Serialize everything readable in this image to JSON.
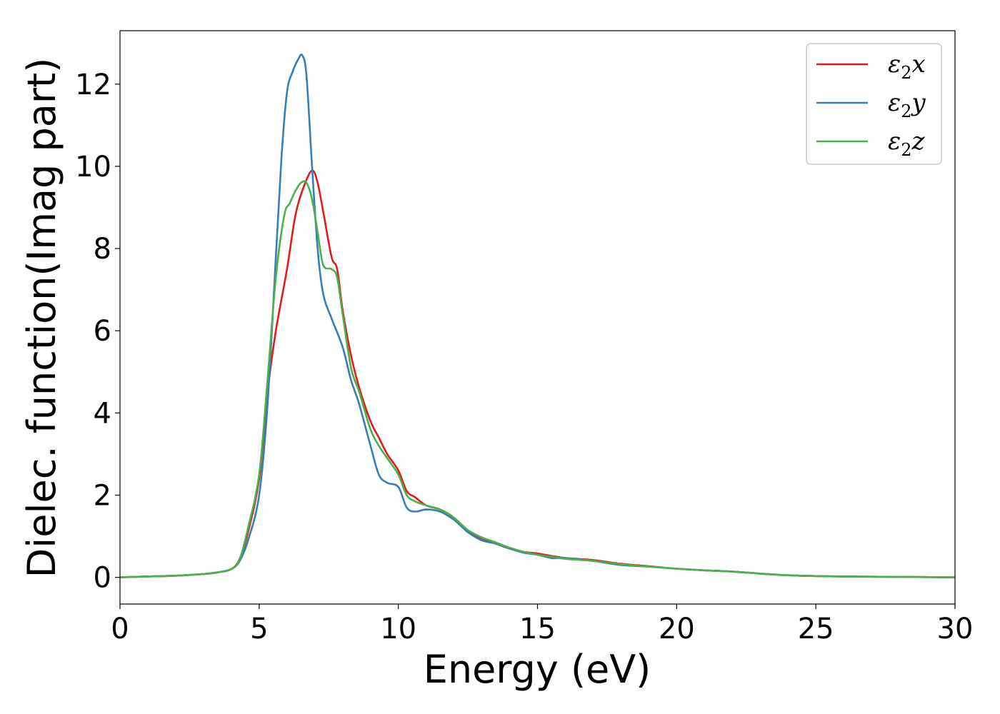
{
  "chart_data": {
    "type": "line",
    "xlabel": "Energy (eV)",
    "ylabel": "Dielec. function(Imag part)",
    "xlim": [
      0,
      30
    ],
    "ylim": [
      -0.65,
      13.3
    ],
    "xticks": [
      0,
      5,
      10,
      15,
      20,
      25,
      30
    ],
    "yticks": [
      0,
      2,
      4,
      6,
      8,
      10,
      12
    ],
    "grid": false,
    "legend_position": "top-right",
    "series": [
      {
        "name": "ε2x",
        "color": "#e41a1c",
        "x": [
          0,
          1,
          2,
          3,
          3.5,
          4,
          4.3,
          4.6,
          5,
          5.3,
          5.6,
          6,
          6.3,
          6.6,
          6.9,
          7.1,
          7.3,
          7.6,
          7.8,
          8,
          8.3,
          8.6,
          9,
          9.3,
          9.6,
          10,
          10.3,
          10.6,
          11,
          11.5,
          12,
          12.5,
          13,
          13.5,
          14,
          14.5,
          15,
          15.5,
          16,
          17,
          18,
          19,
          20,
          21,
          22,
          23,
          24,
          25,
          26,
          28,
          30
        ],
        "y": [
          0.0,
          0.02,
          0.04,
          0.08,
          0.12,
          0.2,
          0.45,
          1.1,
          2.4,
          4.5,
          6.0,
          7.5,
          8.8,
          9.5,
          9.9,
          9.6,
          8.9,
          7.8,
          7.5,
          6.5,
          5.4,
          4.6,
          3.8,
          3.4,
          3.0,
          2.6,
          2.1,
          1.95,
          1.75,
          1.65,
          1.45,
          1.1,
          0.95,
          0.82,
          0.7,
          0.62,
          0.58,
          0.52,
          0.47,
          0.42,
          0.33,
          0.27,
          0.21,
          0.17,
          0.14,
          0.09,
          0.05,
          0.03,
          0.02,
          0.01,
          0.0
        ]
      },
      {
        "name": "ε2y",
        "color": "#377eb8",
        "x": [
          0,
          1,
          2,
          3,
          3.5,
          4,
          4.3,
          4.6,
          5,
          5.3,
          5.6,
          5.8,
          6,
          6.2,
          6.4,
          6.55,
          6.7,
          6.9,
          7.1,
          7.3,
          7.6,
          8,
          8.3,
          8.6,
          9,
          9.3,
          9.6,
          10,
          10.3,
          10.6,
          11,
          11.5,
          12,
          12.5,
          13,
          13.5,
          14,
          14.5,
          15,
          15.5,
          16,
          17,
          18,
          19,
          20,
          21,
          22,
          23,
          24,
          25,
          26,
          28,
          30
        ],
        "y": [
          0.0,
          0.02,
          0.04,
          0.08,
          0.12,
          0.2,
          0.4,
          0.9,
          2.0,
          4.2,
          7.8,
          10.2,
          11.8,
          12.3,
          12.6,
          12.7,
          12.2,
          10.0,
          8.0,
          6.9,
          6.3,
          5.6,
          4.8,
          4.2,
          3.2,
          2.5,
          2.3,
          2.2,
          1.7,
          1.6,
          1.65,
          1.6,
          1.4,
          1.1,
          0.9,
          0.82,
          0.7,
          0.6,
          0.55,
          0.47,
          0.47,
          0.4,
          0.3,
          0.26,
          0.21,
          0.17,
          0.14,
          0.09,
          0.05,
          0.03,
          0.02,
          0.01,
          0.0
        ]
      },
      {
        "name": "ε2z",
        "color": "#4daf4a",
        "x": [
          0,
          1,
          2,
          3,
          3.5,
          4,
          4.3,
          4.6,
          5,
          5.3,
          5.6,
          5.9,
          6.1,
          6.3,
          6.5,
          6.7,
          6.9,
          7.1,
          7.3,
          7.6,
          7.8,
          8,
          8.3,
          8.6,
          9,
          9.3,
          9.6,
          10,
          10.3,
          10.6,
          11,
          11.5,
          12,
          12.5,
          13,
          13.5,
          14,
          14.5,
          15,
          15.5,
          16,
          17,
          18,
          19,
          20,
          21,
          22,
          23,
          24,
          25,
          26,
          28,
          30
        ],
        "y": [
          0.0,
          0.02,
          0.04,
          0.08,
          0.12,
          0.2,
          0.45,
          1.2,
          2.5,
          4.8,
          7.3,
          8.8,
          9.1,
          9.4,
          9.6,
          9.6,
          9.2,
          8.4,
          7.6,
          7.5,
          7.3,
          6.4,
          5.1,
          4.5,
          3.6,
          3.2,
          2.9,
          2.5,
          2.0,
          1.85,
          1.75,
          1.65,
          1.45,
          1.15,
          0.97,
          0.85,
          0.72,
          0.62,
          0.55,
          0.5,
          0.45,
          0.4,
          0.32,
          0.26,
          0.21,
          0.17,
          0.14,
          0.09,
          0.05,
          0.03,
          0.02,
          0.01,
          0.0
        ]
      }
    ]
  }
}
